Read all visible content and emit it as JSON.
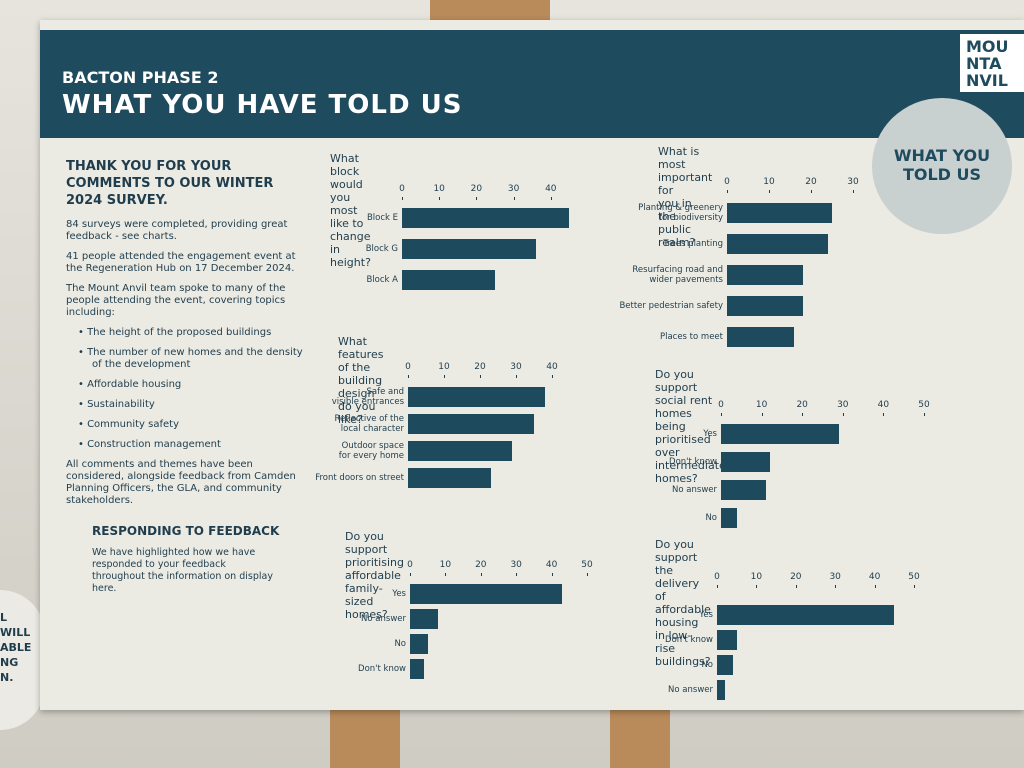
{
  "header": {
    "kicker": "BACTON PHASE 2",
    "title": "WHAT YOU HAVE TOLD US"
  },
  "logo": [
    "MOU",
    "NTA",
    "NVIL"
  ],
  "badge": "WHAT YOU\nTOLD US",
  "edge_sign": [
    "L",
    "WILL",
    "ABLE",
    "NG",
    "N."
  ],
  "left": {
    "heading": "THANK YOU FOR YOUR\nCOMMENTS TO OUR WINTER\n2024 SURVEY.",
    "paragraphs": [
      "84 surveys were completed, providing great feedback - see charts.",
      "41 people attended the engagement event at the Regeneration Hub on 17 December 2024.",
      "The Mount Anvil team spoke to many of the people attending the event, covering topics including:"
    ],
    "bullets": [
      "The height of the proposed buildings",
      "The number of new homes and the density of the development",
      "Affordable housing",
      "Sustainability",
      "Community safety",
      "Construction management"
    ],
    "closing": "All comments and themes have been considered, alongside feedback from Camden Planning Officers, the GLA, and community stakeholders.",
    "heading2": "RESPONDING TO FEEDBACK",
    "body2": "We have highlighted how we have responded to your feedback throughout the information on display here."
  },
  "chart_data": [
    {
      "type": "hbar",
      "title": "What block would you most\nlike to change in height?",
      "categories": [
        "Block E",
        "Block G",
        "Block A"
      ],
      "values": [
        45,
        36,
        25
      ],
      "color": "#1d4a5c",
      "xlim": [
        0,
        45
      ],
      "xticks": [
        0,
        10,
        20,
        30,
        40
      ]
    },
    {
      "type": "hbar",
      "title": "What features of the building\ndesign do you like?",
      "categories": [
        "Safe and\nvisible entrances",
        "Reflective of the\nlocal character",
        "Outdoor space\nfor every home",
        "Front doors on street"
      ],
      "values": [
        38,
        35,
        29,
        23
      ],
      "color": "#1d4a5c",
      "xlim": [
        0,
        40
      ],
      "xticks": [
        0,
        10,
        20,
        30,
        40
      ]
    },
    {
      "type": "hbar",
      "title": "Do you support prioritising affordable\nfamily-sized homes?",
      "categories": [
        "Yes",
        "No answer",
        "No",
        "Don't know"
      ],
      "values": [
        43,
        8,
        5,
        4
      ],
      "color": "#1d4a5c",
      "xlim": [
        0,
        50
      ],
      "xticks": [
        0,
        10,
        20,
        30,
        40,
        50
      ]
    },
    {
      "type": "hbar",
      "title": "What is most important for\nyou in the public realm?",
      "categories": [
        "Planting & greenery\nfor biodiversity",
        "Trees planting",
        "Resurfacing road and\nwider pavements",
        "Better pedestrian safety",
        "Places to meet"
      ],
      "values": [
        25,
        24,
        18,
        18,
        16
      ],
      "color": "#1d4a5c",
      "xlim": [
        0,
        30
      ],
      "xticks": [
        0,
        10,
        20,
        30
      ]
    },
    {
      "type": "hbar",
      "title": "Do you support social rent homes being\nprioritised over intermediate homes?",
      "categories": [
        "Yes",
        "Don't know",
        "No answer",
        "No"
      ],
      "values": [
        29,
        12,
        11,
        4
      ],
      "color": "#1d4a5c",
      "xlim": [
        0,
        50
      ],
      "xticks": [
        0,
        10,
        20,
        30,
        40,
        50
      ]
    },
    {
      "type": "hbar",
      "title": "Do you support the delivery of affordable\nhousing in low-rise buildings?",
      "categories": [
        "Yes",
        "Don't know",
        "No",
        "No answer"
      ],
      "values": [
        45,
        5,
        4,
        2
      ],
      "color": "#1d4a5c",
      "xlim": [
        0,
        50
      ],
      "xticks": [
        0,
        10,
        20,
        30,
        40,
        50
      ]
    }
  ]
}
